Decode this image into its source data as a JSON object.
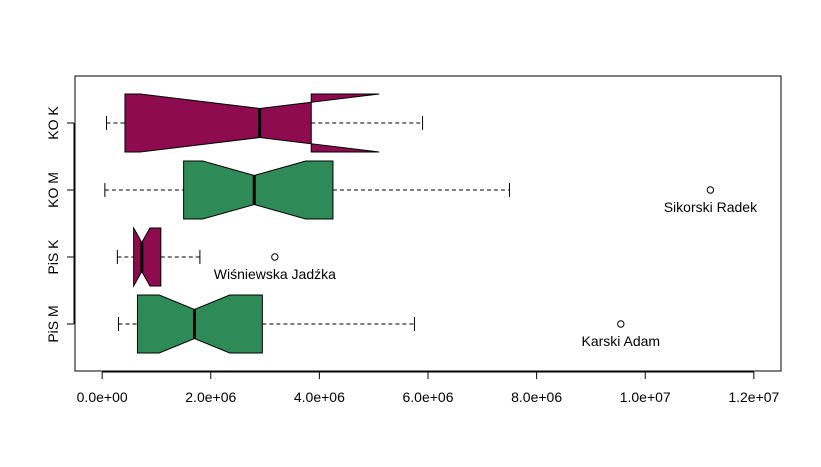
{
  "chart_data": {
    "type": "boxplot",
    "orientation": "horizontal",
    "notched": true,
    "title": "",
    "xlabel": "",
    "ylabel": "",
    "xlim": [
      -500000,
      12500000
    ],
    "x_ticks": [
      0,
      2000000,
      4000000,
      6000000,
      8000000,
      10000000,
      12000000
    ],
    "x_tick_labels": [
      "0.0e+00",
      "2.0e+06",
      "4.0e+06",
      "6.0e+06",
      "8.0e+06",
      "1.0e+07",
      "1.2e+07"
    ],
    "categories": [
      "PiS M",
      "PiS K",
      "KO M",
      "KO K"
    ],
    "colors": {
      "KO K": "#8E0B4F",
      "KO M": "#2E8B57",
      "PiS K": "#8E0B4F",
      "PiS M": "#2E8B57"
    },
    "boxes": [
      {
        "category": "PiS M",
        "whisker_low": 300000,
        "q1": 650000,
        "median": 1700000,
        "q3": 2950000,
        "whisker_high": 5750000,
        "notch_low": 1050000,
        "notch_high": 2350000,
        "outliers": [
          {
            "value": 9550000,
            "label": "Karski Adam"
          }
        ]
      },
      {
        "category": "PiS K",
        "whisker_low": 280000,
        "q1": 580000,
        "median": 730000,
        "q3": 1080000,
        "whisker_high": 1800000,
        "notch_low": 580000,
        "notch_high": 880000,
        "outliers": [
          {
            "value": 3180000,
            "label": "Wiśniewska Jadźka"
          }
        ]
      },
      {
        "category": "KO M",
        "whisker_low": 50000,
        "q1": 1500000,
        "median": 2800000,
        "q3": 4250000,
        "whisker_high": 7500000,
        "notch_low": 1850000,
        "notch_high": 3750000,
        "outliers": [
          {
            "value": 11200000,
            "label": "Sikorski Radek"
          }
        ]
      },
      {
        "category": "KO K",
        "whisker_low": 80000,
        "q1": 420000,
        "median": 2900000,
        "q3": 3850000,
        "whisker_high": 5900000,
        "notch_low": 700000,
        "notch_high": 5100000,
        "outliers": []
      }
    ]
  }
}
